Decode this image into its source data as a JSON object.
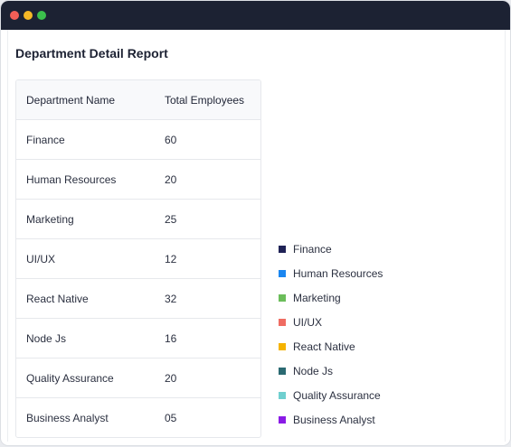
{
  "report": {
    "title": "Department Detail Report",
    "columns": [
      "Department Name",
      "Total Employees"
    ],
    "rows": [
      {
        "name": "Finance",
        "employees": "60"
      },
      {
        "name": "Human Resources",
        "employees": "20"
      },
      {
        "name": "Marketing",
        "employees": "25"
      },
      {
        "name": "UI/UX",
        "employees": "12"
      },
      {
        "name": "React Native",
        "employees": "32"
      },
      {
        "name": "Node Js",
        "employees": "16"
      },
      {
        "name": "Quality Assurance",
        "employees": "20"
      },
      {
        "name": "Business Analyst",
        "employees": "05"
      }
    ]
  },
  "legend": [
    {
      "label": "Finance",
      "color": "#1f2256"
    },
    {
      "label": "Human Resources",
      "color": "#1a86f0"
    },
    {
      "label": "Marketing",
      "color": "#6bbd5a"
    },
    {
      "label": "UI/UX",
      "color": "#ef6c62"
    },
    {
      "label": "React Native",
      "color": "#f5b300"
    },
    {
      "label": "Node Js",
      "color": "#2b6a72"
    },
    {
      "label": "Quality Assurance",
      "color": "#6fcfcf"
    },
    {
      "label": "Business Analyst",
      "color": "#8a1be6"
    }
  ]
}
